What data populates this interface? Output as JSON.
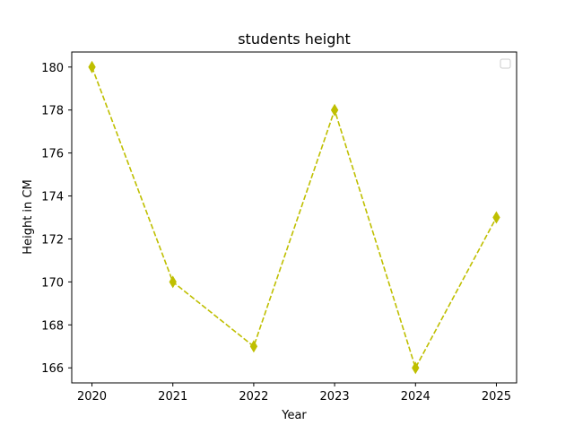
{
  "chart_data": {
    "type": "line",
    "title": "students height",
    "xlabel": "Year",
    "ylabel": "Height in CM",
    "x": [
      2020,
      2021,
      2022,
      2023,
      2024,
      2025
    ],
    "xticks": [
      "2020",
      "2021",
      "2022",
      "2023",
      "2024",
      "2025"
    ],
    "yticks": [
      166,
      168,
      170,
      172,
      174,
      176,
      178,
      180
    ],
    "xlim": [
      2019.75,
      2025.25
    ],
    "ylim": [
      165.3,
      180.7
    ],
    "series": [
      {
        "name": "",
        "values": [
          180,
          170,
          167,
          178,
          166,
          173
        ],
        "color": "#bfbf00",
        "line_style": "dashed",
        "marker": "thin-diamond"
      }
    ],
    "legend": {
      "placement": "upper-right",
      "entries": []
    },
    "grid": false
  }
}
